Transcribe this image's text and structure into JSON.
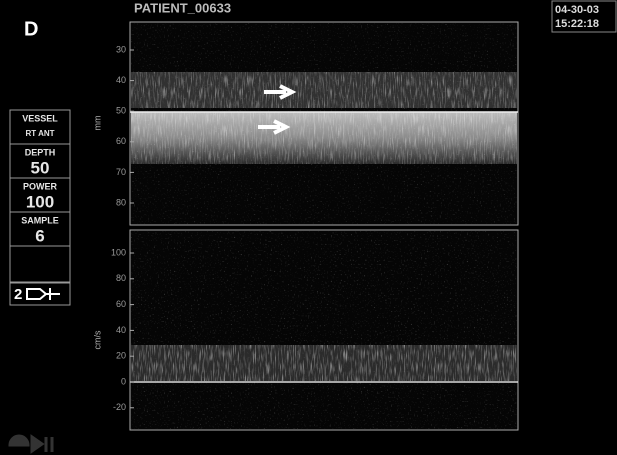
{
  "header": {
    "panel_letter": "D",
    "patient": "PATIENT_00633",
    "date": "04-30-03",
    "time": "15:22:18"
  },
  "side_panel": {
    "vessel_label": "VESSEL",
    "vessel": "RT ANT",
    "depth_label": "DEPTH",
    "depth": 50,
    "power_label": "POWER",
    "power": 100,
    "sample_label": "SAMPLE",
    "sample": 6,
    "probe": 2
  },
  "mmode": {
    "axis_label": "mm",
    "ticks": [
      30,
      40,
      50,
      60,
      70,
      80
    ]
  },
  "spectrum": {
    "axis_label": "cm/s",
    "ticks": [
      100,
      80,
      60,
      40,
      20,
      0,
      -20
    ]
  }
}
